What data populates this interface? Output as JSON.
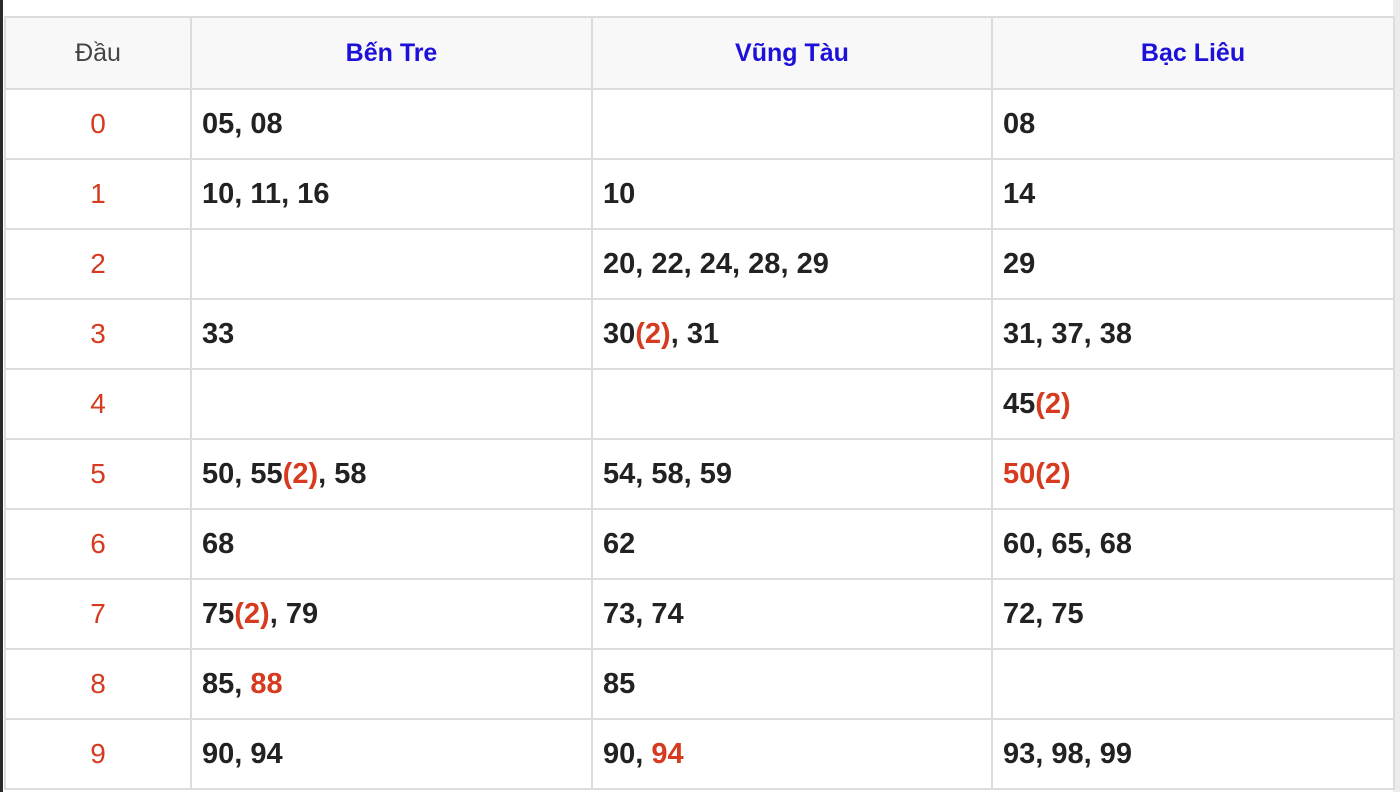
{
  "headers": {
    "dau": "Đầu",
    "col1": "Bến Tre",
    "col2": "Vũng Tàu",
    "col3": "Bạc Liêu"
  },
  "colors": {
    "header": "#1d10d8",
    "highlight": "#d63a1f",
    "text": "#222222"
  },
  "rows": [
    {
      "head": "0",
      "cells": [
        [
          {
            "n": "05"
          },
          {
            "n": "08"
          }
        ],
        [],
        [
          {
            "n": "08"
          }
        ]
      ]
    },
    {
      "head": "1",
      "cells": [
        [
          {
            "n": "10"
          },
          {
            "n": "11"
          },
          {
            "n": "16"
          }
        ],
        [
          {
            "n": "10"
          }
        ],
        [
          {
            "n": "14"
          }
        ]
      ]
    },
    {
      "head": "2",
      "cells": [
        [],
        [
          {
            "n": "20"
          },
          {
            "n": "22"
          },
          {
            "n": "24"
          },
          {
            "n": "28"
          },
          {
            "n": "29"
          }
        ],
        [
          {
            "n": "29"
          }
        ]
      ]
    },
    {
      "head": "3",
      "cells": [
        [
          {
            "n": "33"
          }
        ],
        [
          {
            "n": "30",
            "dup": "(2)"
          },
          {
            "n": "31"
          }
        ],
        [
          {
            "n": "31"
          },
          {
            "n": "37"
          },
          {
            "n": "38"
          }
        ]
      ]
    },
    {
      "head": "4",
      "cells": [
        [],
        [],
        [
          {
            "n": "45",
            "dup": "(2)"
          }
        ]
      ]
    },
    {
      "head": "5",
      "cells": [
        [
          {
            "n": "50"
          },
          {
            "n": "55",
            "dup": "(2)"
          },
          {
            "n": "58"
          }
        ],
        [
          {
            "n": "54"
          },
          {
            "n": "58"
          },
          {
            "n": "59"
          }
        ],
        [
          {
            "n": "50",
            "dup": "(2)",
            "red": true
          }
        ]
      ]
    },
    {
      "head": "6",
      "cells": [
        [
          {
            "n": "68"
          }
        ],
        [
          {
            "n": "62"
          }
        ],
        [
          {
            "n": "60"
          },
          {
            "n": "65"
          },
          {
            "n": "68"
          }
        ]
      ]
    },
    {
      "head": "7",
      "cells": [
        [
          {
            "n": "75",
            "dup": "(2)"
          },
          {
            "n": "79"
          }
        ],
        [
          {
            "n": "73"
          },
          {
            "n": "74"
          }
        ],
        [
          {
            "n": "72"
          },
          {
            "n": "75"
          }
        ]
      ]
    },
    {
      "head": "8",
      "cells": [
        [
          {
            "n": "85"
          },
          {
            "n": "88",
            "red": true
          }
        ],
        [
          {
            "n": "85"
          }
        ],
        []
      ]
    },
    {
      "head": "9",
      "cells": [
        [
          {
            "n": "90"
          },
          {
            "n": "94"
          }
        ],
        [
          {
            "n": "90"
          },
          {
            "n": "94",
            "red": true
          }
        ],
        [
          {
            "n": "93"
          },
          {
            "n": "98"
          },
          {
            "n": "99"
          }
        ]
      ]
    }
  ]
}
